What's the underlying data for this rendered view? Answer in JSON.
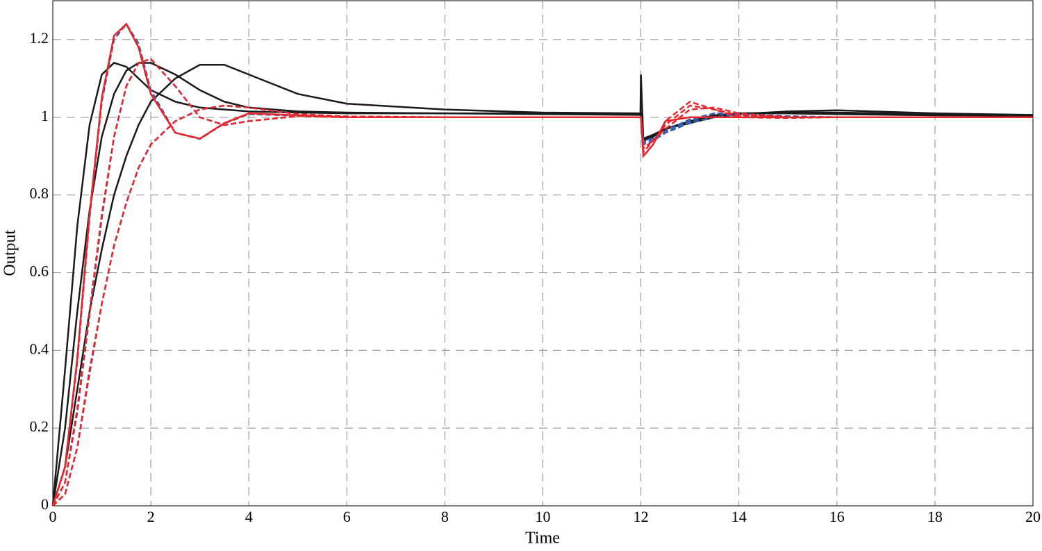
{
  "chart_data": {
    "type": "line",
    "x_label": "Time",
    "y_label": "Output",
    "x": [
      0,
      0.25,
      0.5,
      0.75,
      1,
      1.25,
      1.5,
      1.75,
      2,
      2.5,
      3,
      3.5,
      4,
      5,
      6,
      8,
      10,
      11.99,
      12,
      12.05,
      12.25,
      12.5,
      13,
      13.5,
      14,
      15,
      16,
      18,
      20
    ],
    "xlim": [
      0,
      20
    ],
    "xticks": [
      0,
      2,
      4,
      6,
      8,
      10,
      12,
      14,
      16,
      18,
      20
    ],
    "ylim": [
      0,
      1.3
    ],
    "yticks": [
      0,
      0.2,
      0.4,
      0.6,
      0.8,
      1,
      1.2
    ],
    "grid": true,
    "series": [
      {
        "color": "#1a1a1a",
        "dashed": false,
        "values": [
          0,
          0.35,
          0.72,
          0.98,
          1.11,
          1.14,
          1.13,
          1.1,
          1.07,
          1.04,
          1.025,
          1.02,
          1.015,
          1.012,
          1.01,
          1.01,
          1.01,
          1.008,
          1.11,
          0.94,
          0.95,
          0.97,
          0.99,
          1.005,
          1.01,
          1.012,
          1.012,
          1.008,
          1.005
        ]
      },
      {
        "color": "#1a1a1a",
        "dashed": false,
        "values": [
          0,
          0.2,
          0.5,
          0.76,
          0.95,
          1.06,
          1.12,
          1.14,
          1.14,
          1.11,
          1.07,
          1.04,
          1.025,
          1.015,
          1.012,
          1.01,
          1.008,
          1.006,
          1.006,
          0.94,
          0.955,
          0.97,
          0.99,
          1.005,
          1.01,
          1.01,
          1.008,
          1.005,
          1.004
        ]
      },
      {
        "color": "#1a1a1a",
        "dashed": false,
        "values": [
          0,
          0.1,
          0.3,
          0.5,
          0.66,
          0.8,
          0.9,
          0.98,
          1.04,
          1.1,
          1.135,
          1.135,
          1.11,
          1.06,
          1.035,
          1.02,
          1.012,
          1.01,
          1.01,
          0.945,
          0.955,
          0.97,
          0.985,
          1.0,
          1.008,
          1.015,
          1.018,
          1.01,
          1.006
        ]
      },
      {
        "color": "#3a5fb0",
        "dashed": true,
        "values": [
          0,
          0.1,
          0.37,
          0.74,
          1.04,
          1.2,
          1.24,
          1.19,
          1.07,
          0.96,
          0.944,
          0.984,
          1.008,
          1.004,
          1.0,
          1.0,
          1.0,
          1.0,
          1.0,
          0.93,
          0.94,
          0.96,
          0.99,
          1.01,
          1.008,
          1.0,
          1.0,
          1.0,
          1.0
        ]
      },
      {
        "color": "#3a5fb0",
        "dashed": true,
        "values": [
          0,
          0.06,
          0.24,
          0.49,
          0.74,
          0.95,
          1.08,
          1.14,
          1.15,
          1.08,
          1.0,
          0.98,
          0.99,
          1.003,
          1.0,
          1.0,
          1.0,
          1.0,
          1.0,
          0.935,
          0.945,
          0.965,
          0.995,
          1.01,
          1.006,
          1.0,
          1.0,
          1.0,
          1.0
        ]
      },
      {
        "color": "#3a5fb0",
        "dashed": true,
        "values": [
          0,
          0.03,
          0.15,
          0.34,
          0.52,
          0.67,
          0.78,
          0.87,
          0.93,
          0.99,
          1.02,
          1.03,
          1.025,
          1.008,
          1.002,
          1.0,
          1.0,
          1.0,
          1.0,
          0.94,
          0.945,
          0.96,
          0.985,
          1.0,
          1.008,
          1.003,
          1.0,
          1.0,
          1.0
        ]
      },
      {
        "color": "#e8262b",
        "dashed": true,
        "values": [
          0,
          0.1,
          0.38,
          0.75,
          1.05,
          1.21,
          1.24,
          1.18,
          1.06,
          0.96,
          0.945,
          0.985,
          1.01,
          1.005,
          1.0,
          1.0,
          1.0,
          1.0,
          1.0,
          0.9,
          0.93,
          0.99,
          1.04,
          1.02,
          1.0,
          0.998,
          1.0,
          1.0,
          1.0
        ]
      },
      {
        "color": "#e8262b",
        "dashed": true,
        "values": [
          0,
          0.06,
          0.25,
          0.5,
          0.75,
          0.95,
          1.08,
          1.14,
          1.15,
          1.08,
          1.0,
          0.98,
          0.99,
          1.003,
          1.0,
          1.0,
          1.0,
          1.0,
          1.0,
          0.91,
          0.94,
          0.98,
          1.03,
          1.02,
          1.005,
          1.0,
          1.0,
          1.0,
          1.0
        ]
      },
      {
        "color": "#e8262b",
        "dashed": true,
        "values": [
          0,
          0.03,
          0.15,
          0.35,
          0.52,
          0.67,
          0.78,
          0.87,
          0.93,
          0.99,
          1.02,
          1.03,
          1.025,
          1.008,
          1.002,
          1.0,
          1.0,
          1.0,
          1.0,
          0.92,
          0.94,
          0.97,
          1.02,
          1.025,
          1.01,
          1.0,
          1.0,
          1.0,
          1.0
        ]
      },
      {
        "color": "#e8262b",
        "dashed": false,
        "values": [
          0,
          0.1,
          0.38,
          0.75,
          1.05,
          1.21,
          1.24,
          1.18,
          1.06,
          0.96,
          0.945,
          0.985,
          1.01,
          1.005,
          1.0,
          1.0,
          1.0,
          1.0,
          1.0,
          0.9,
          0.93,
          0.99,
          1.0,
          1.0,
          1.0,
          1.0,
          1.0,
          1.0,
          1.0
        ]
      }
    ]
  }
}
